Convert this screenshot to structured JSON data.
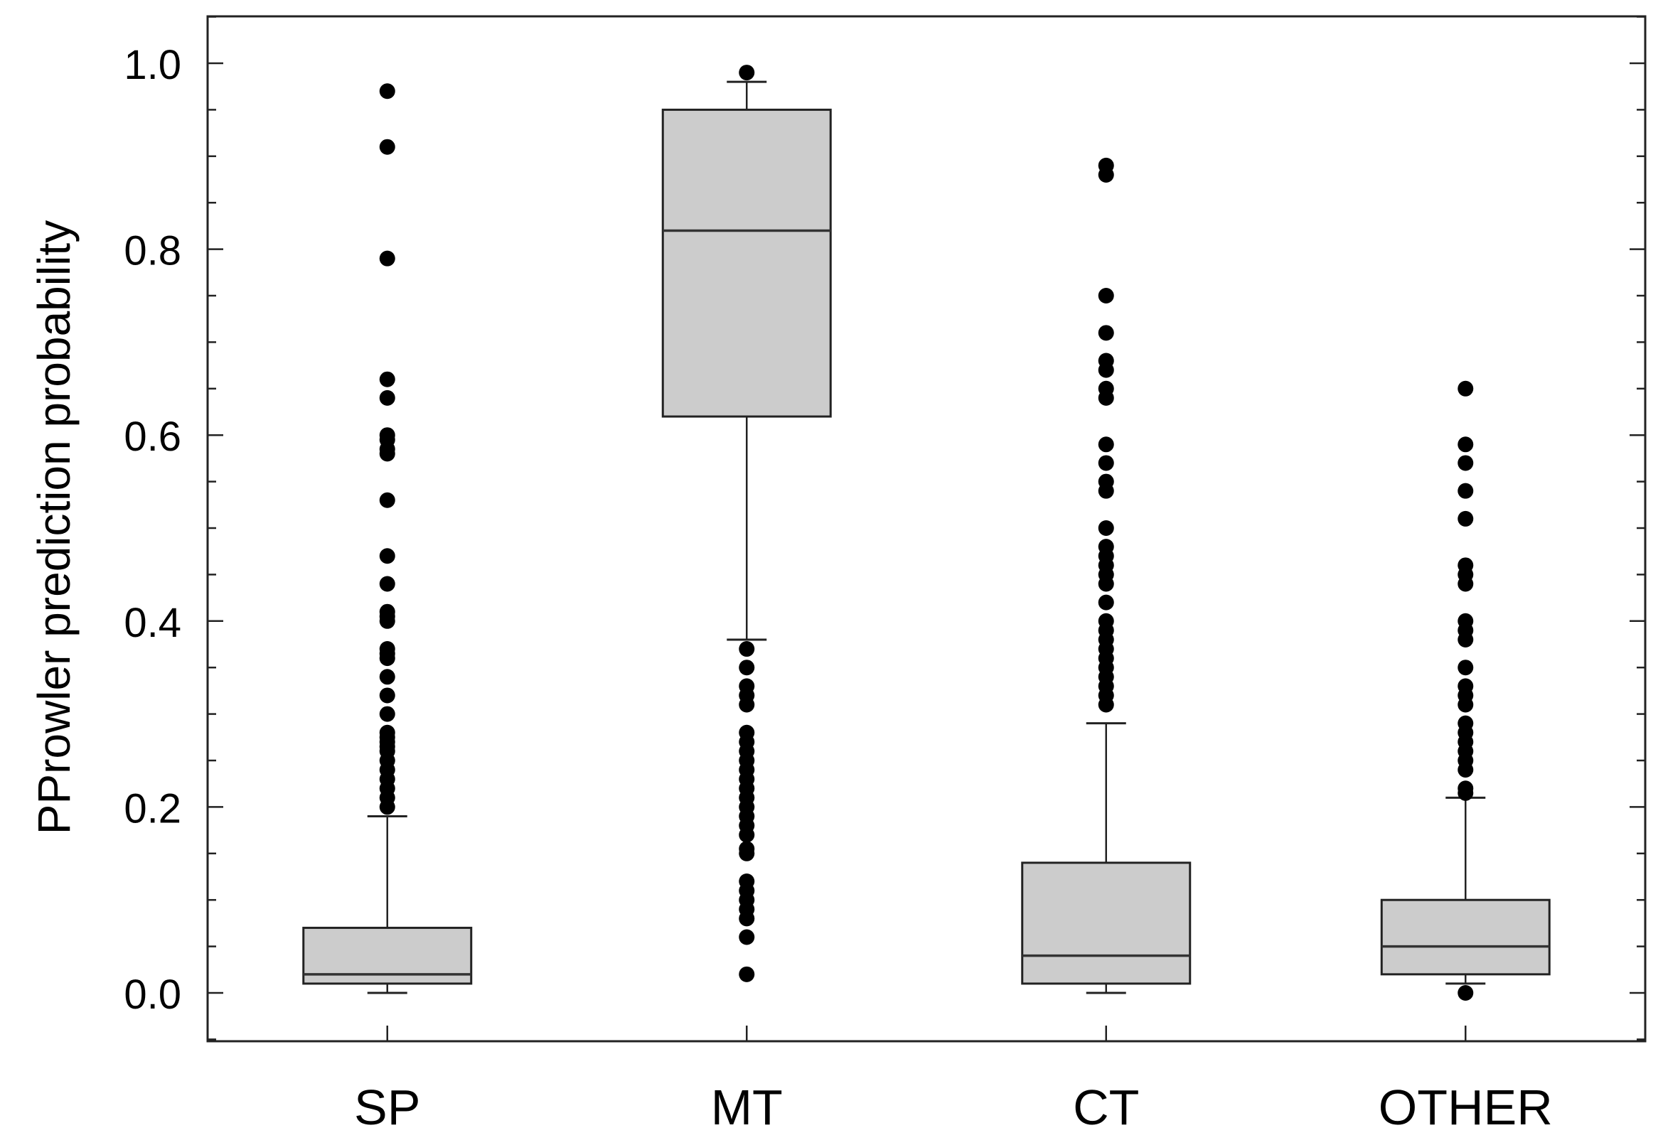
{
  "chart_data": {
    "type": "box",
    "title": "",
    "xlabel": "",
    "ylabel": "PProwler prediction probability",
    "ylim": [
      -0.05,
      1.05
    ],
    "yticks": [
      "0.0",
      "0.2",
      "0.4",
      "0.6",
      "0.8",
      "1.0"
    ],
    "ytick_values": [
      0.0,
      0.2,
      0.4,
      0.6,
      0.8,
      1.0
    ],
    "grid": false,
    "box_fill": "#cccccc",
    "categories": [
      "SP",
      "MT",
      "CT",
      "OTHER"
    ],
    "boxes": [
      {
        "category": "SP",
        "whisker_low": 0.0,
        "q1": 0.01,
        "median": 0.02,
        "q3": 0.07,
        "whisker_high": 0.19,
        "outliers": [
          0.97,
          0.91,
          0.79,
          0.66,
          0.64,
          0.6,
          0.595,
          0.585,
          0.58,
          0.53,
          0.47,
          0.44,
          0.41,
          0.405,
          0.4,
          0.37,
          0.365,
          0.36,
          0.34,
          0.32,
          0.3,
          0.28,
          0.275,
          0.27,
          0.265,
          0.26,
          0.25,
          0.24,
          0.23,
          0.22,
          0.21,
          0.2
        ]
      },
      {
        "category": "MT",
        "whisker_low": 0.38,
        "q1": 0.62,
        "median": 0.82,
        "q3": 0.95,
        "whisker_high": 0.98,
        "outliers": [
          0.99,
          0.37,
          0.35,
          0.33,
          0.32,
          0.31,
          0.28,
          0.27,
          0.26,
          0.25,
          0.24,
          0.23,
          0.22,
          0.21,
          0.2,
          0.19,
          0.18,
          0.17,
          0.155,
          0.15,
          0.12,
          0.11,
          0.1,
          0.09,
          0.08,
          0.06,
          0.02
        ]
      },
      {
        "category": "CT",
        "whisker_low": 0.0,
        "q1": 0.01,
        "median": 0.04,
        "q3": 0.14,
        "whisker_high": 0.29,
        "outliers": [
          0.89,
          0.88,
          0.75,
          0.71,
          0.68,
          0.67,
          0.65,
          0.64,
          0.59,
          0.57,
          0.55,
          0.54,
          0.5,
          0.48,
          0.47,
          0.46,
          0.45,
          0.44,
          0.42,
          0.4,
          0.39,
          0.38,
          0.37,
          0.36,
          0.35,
          0.34,
          0.33,
          0.32,
          0.31
        ]
      },
      {
        "category": "OTHER",
        "whisker_low": 0.01,
        "q1": 0.02,
        "median": 0.05,
        "q3": 0.1,
        "whisker_high": 0.21,
        "outliers": [
          0.65,
          0.59,
          0.57,
          0.54,
          0.51,
          0.46,
          0.45,
          0.44,
          0.4,
          0.39,
          0.38,
          0.35,
          0.33,
          0.32,
          0.31,
          0.29,
          0.28,
          0.27,
          0.26,
          0.25,
          0.24,
          0.22,
          0.215,
          0.0
        ]
      }
    ]
  }
}
